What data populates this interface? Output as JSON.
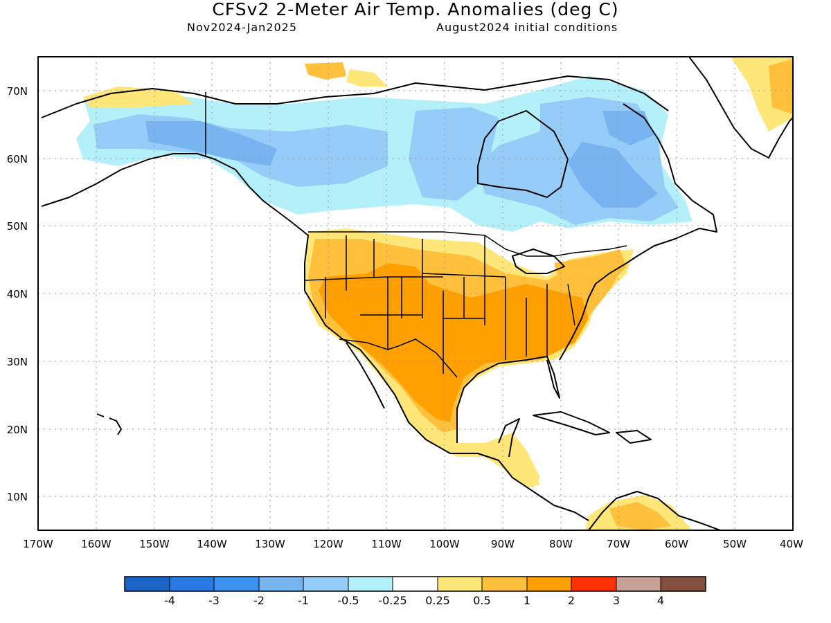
{
  "header": {
    "title": "CFSv2 2-Meter Air Temp. Anomalies (deg C)",
    "period": "Nov2024-Jan2025",
    "initial_conditions": "August2024 initial conditions"
  },
  "axes": {
    "latitude_labels": [
      "70N",
      "60N",
      "50N",
      "40N",
      "30N",
      "20N",
      "10N"
    ],
    "longitude_labels": [
      "170W",
      "160W",
      "150W",
      "140W",
      "130W",
      "120W",
      "110W",
      "100W",
      "90W",
      "80W",
      "70W",
      "60W",
      "50W",
      "40W"
    ],
    "lat_range": [
      5,
      75
    ],
    "lon_range": [
      -170,
      -40
    ]
  },
  "colorbar": {
    "colors": [
      "#1a64c8",
      "#2a7ae6",
      "#3c92f0",
      "#78b4f0",
      "#96ccf8",
      "#b4f0fa",
      "#ffffff",
      "#ffe678",
      "#ffc03c",
      "#ffa000",
      "#ff3200",
      "#c8a096",
      "#82503c"
    ],
    "labels": [
      "-4",
      "-3",
      "-2",
      "-1",
      "-0.5",
      "-0.25",
      "0.25",
      "0.5",
      "1",
      "2",
      "3",
      "4"
    ]
  },
  "anomaly_regions": [
    {
      "name": "Alaska and western/northern Canada",
      "category": "-0.5 to -1",
      "color": "#96ccf8"
    },
    {
      "name": "Central Alaska and Yukon core",
      "category": "-1 to -2",
      "color": "#78b4f0"
    },
    {
      "name": "Labrador and Quebec",
      "category": "-1 to -2",
      "color": "#78b4f0"
    },
    {
      "name": "Western and central United States",
      "category": "0.5 to 1",
      "color": "#ffc03c"
    },
    {
      "name": "Southwest US and Mexico",
      "category": "1 to 2",
      "color": "#ffa000"
    },
    {
      "name": "Southeast United States",
      "category": "1 to 2",
      "color": "#ffa000"
    },
    {
      "name": "Northeast United States",
      "category": "0.5 to 1",
      "color": "#ffc03c"
    },
    {
      "name": "Central America",
      "category": "0.25 to 0.5",
      "color": "#ffe678"
    },
    {
      "name": "Northern South America",
      "category": "0.25 to 1",
      "color": "#ffe678"
    },
    {
      "name": "Greenland east coast",
      "category": "0.25 to 1",
      "color": "#ffe678"
    },
    {
      "name": "Arctic islands north",
      "category": "0.25 to 1",
      "color": "#ffc03c"
    }
  ]
}
